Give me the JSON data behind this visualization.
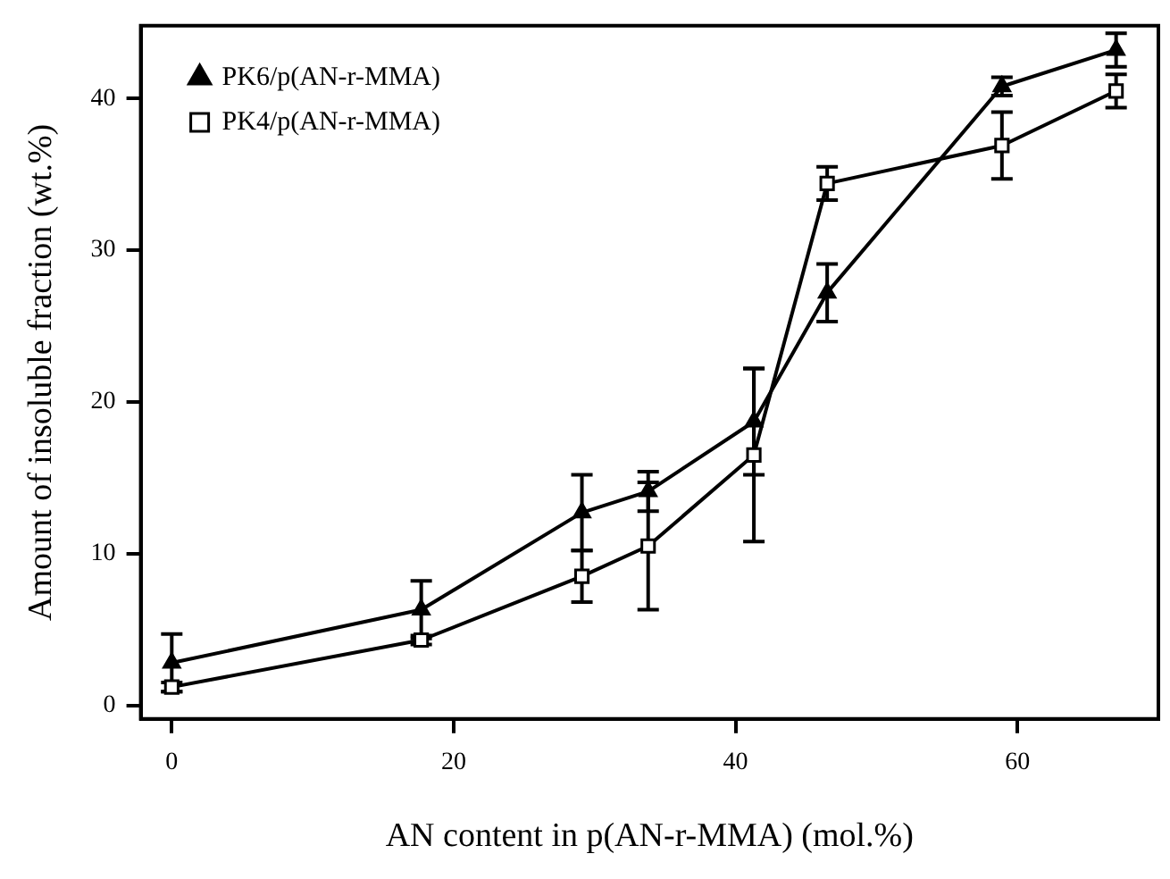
{
  "chart_data": {
    "type": "line",
    "xlabel": "AN content in p(AN-r-MMA) (mol.%)",
    "ylabel": "Amount of insoluble fraction (wt.%)",
    "xlim": [
      -2.2,
      70
    ],
    "xticks": [
      0,
      20,
      40,
      60
    ],
    "ylim": [
      -0.9,
      44.8
    ],
    "yticks": [
      0,
      10,
      20,
      30,
      40
    ],
    "grid": false,
    "legend": "top left",
    "line_style": "solid",
    "series": [
      {
        "name": "PK6/p(AN-r-MMA)",
        "color": "#000000",
        "marker": "triangle",
        "x": [
          0,
          17.7,
          29.1,
          33.8,
          41.3,
          46.5,
          58.9,
          67
        ],
        "values": [
          2.8,
          6.3,
          12.7,
          14.1,
          18.7,
          27.2,
          40.8,
          43.2
        ],
        "errors": [
          1.9,
          1.9,
          2.5,
          1.3,
          3.5,
          1.9,
          0.6,
          1.1
        ]
      },
      {
        "name": "PK4/p(AN-r-MMA)",
        "color": "#000000",
        "marker": "square",
        "x": [
          0,
          17.7,
          29.1,
          33.8,
          41.3,
          46.5,
          58.9,
          67
        ],
        "values": [
          1.2,
          4.3,
          8.5,
          10.5,
          16.5,
          34.4,
          36.9,
          40.5
        ],
        "errors": [
          0.3,
          0.3,
          1.7,
          4.2,
          5.7,
          1.1,
          2.2,
          1.1
        ]
      }
    ]
  }
}
